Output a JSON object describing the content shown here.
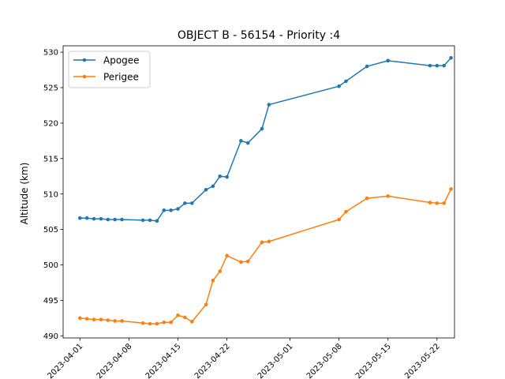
{
  "chart_data": {
    "type": "line",
    "title": "OBJECT B - 56154 - Priority :4",
    "xlabel": "",
    "ylabel": "Altitude (km)",
    "ylim": [
      490,
      531
    ],
    "yticks": [
      490,
      495,
      500,
      505,
      510,
      515,
      520,
      525,
      530
    ],
    "xticks": [
      "2023-04-01",
      "2023-04-08",
      "2023-04-15",
      "2023-04-22",
      "2023-05-01",
      "2023-05-08",
      "2023-05-15",
      "2023-05-22"
    ],
    "grid": false,
    "legend_position": "top-left",
    "series": [
      {
        "name": "Apogee",
        "color": "#1f77b4",
        "marker": "circle",
        "points": [
          [
            "2023-04-01",
            506.6
          ],
          [
            "2023-04-02",
            506.6
          ],
          [
            "2023-04-03",
            506.5
          ],
          [
            "2023-04-04",
            506.5
          ],
          [
            "2023-04-05",
            506.4
          ],
          [
            "2023-04-06",
            506.4
          ],
          [
            "2023-04-07",
            506.4
          ],
          [
            "2023-04-10",
            506.3
          ],
          [
            "2023-04-11",
            506.3
          ],
          [
            "2023-04-12",
            506.2
          ],
          [
            "2023-04-13",
            507.7
          ],
          [
            "2023-04-14",
            507.7
          ],
          [
            "2023-04-15",
            507.9
          ],
          [
            "2023-04-16",
            508.7
          ],
          [
            "2023-04-17",
            508.7
          ],
          [
            "2023-04-19",
            510.6
          ],
          [
            "2023-04-20",
            511.1
          ],
          [
            "2023-04-21",
            512.5
          ],
          [
            "2023-04-22",
            512.4
          ],
          [
            "2023-04-24",
            517.5
          ],
          [
            "2023-04-25",
            517.2
          ],
          [
            "2023-04-27",
            519.2
          ],
          [
            "2023-04-28",
            522.6
          ],
          [
            "2023-05-08",
            525.2
          ],
          [
            "2023-05-09",
            525.9
          ],
          [
            "2023-05-12",
            528.0
          ],
          [
            "2023-05-15",
            528.8
          ],
          [
            "2023-05-21",
            528.1
          ],
          [
            "2023-05-22",
            528.1
          ],
          [
            "2023-05-23",
            528.1
          ],
          [
            "2023-05-24",
            529.2
          ]
        ]
      },
      {
        "name": "Perigee",
        "color": "#ff7f0e",
        "marker": "circle",
        "points": [
          [
            "2023-04-01",
            492.5
          ],
          [
            "2023-04-02",
            492.4
          ],
          [
            "2023-04-03",
            492.3
          ],
          [
            "2023-04-04",
            492.3
          ],
          [
            "2023-04-05",
            492.2
          ],
          [
            "2023-04-06",
            492.1
          ],
          [
            "2023-04-07",
            492.1
          ],
          [
            "2023-04-10",
            491.8
          ],
          [
            "2023-04-11",
            491.7
          ],
          [
            "2023-04-12",
            491.7
          ],
          [
            "2023-04-13",
            491.9
          ],
          [
            "2023-04-14",
            491.9
          ],
          [
            "2023-04-15",
            492.9
          ],
          [
            "2023-04-16",
            492.6
          ],
          [
            "2023-04-17",
            492.0
          ],
          [
            "2023-04-19",
            494.4
          ],
          [
            "2023-04-20",
            497.8
          ],
          [
            "2023-04-21",
            499.1
          ],
          [
            "2023-04-22",
            501.3
          ],
          [
            "2023-04-24",
            500.4
          ],
          [
            "2023-04-25",
            500.5
          ],
          [
            "2023-04-27",
            503.2
          ],
          [
            "2023-04-28",
            503.3
          ],
          [
            "2023-05-08",
            506.4
          ],
          [
            "2023-05-09",
            507.5
          ],
          [
            "2023-05-12",
            509.4
          ],
          [
            "2023-05-15",
            509.7
          ],
          [
            "2023-05-21",
            508.8
          ],
          [
            "2023-05-22",
            508.7
          ],
          [
            "2023-05-23",
            508.7
          ],
          [
            "2023-05-24",
            510.7
          ]
        ]
      }
    ]
  }
}
